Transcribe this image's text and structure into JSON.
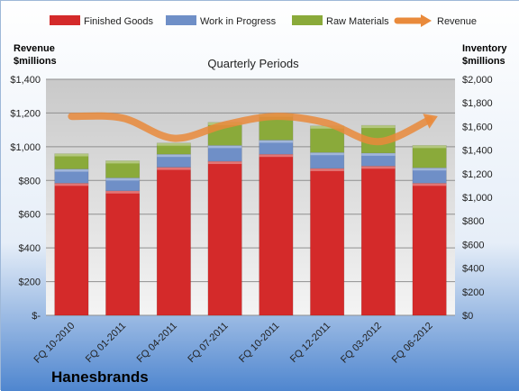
{
  "chart_data": {
    "type": "bar",
    "subtitle": "Quarterly Periods",
    "company": "Hanesbrands",
    "left_axis": {
      "title": [
        "Revenue",
        "$millions"
      ],
      "min": 0,
      "max": 1400,
      "step": 200,
      "tick_labels": [
        "$-",
        "$200",
        "$400",
        "$600",
        "$800",
        "$1,000",
        "$1,200",
        "$1,400"
      ]
    },
    "right_axis": {
      "title": [
        "Inventory",
        "$millions"
      ],
      "min": 0,
      "max": 2000,
      "step": 200,
      "tick_labels": [
        "$0",
        "$200",
        "$400",
        "$600",
        "$800",
        "$1,000",
        "$1,200",
        "$1,400",
        "$1,600",
        "$1,800",
        "$2,000"
      ]
    },
    "categories": [
      "FQ 10-2010",
      "FQ 01-2011",
      "FQ 04-2011",
      "FQ 07-2011",
      "FQ 10-2011",
      "FQ 12-2011",
      "FQ 03-2012",
      "FQ 06-2012"
    ],
    "series": [
      {
        "name": "Finished Goods",
        "axis": "right",
        "color": "#d42a2a",
        "values": [
          1120,
          1055,
          1255,
          1305,
          1365,
          1245,
          1265,
          1120
        ]
      },
      {
        "name": "Work in Progress",
        "axis": "right",
        "color": "#6f8fc7",
        "values": [
          120,
          110,
          110,
          135,
          120,
          135,
          110,
          130
        ]
      },
      {
        "name": "Raw Materials",
        "axis": "right",
        "color": "#8aaa3a",
        "values": [
          130,
          145,
          95,
          195,
          220,
          225,
          235,
          190
        ]
      }
    ],
    "line": {
      "name": "Revenue",
      "axis": "left",
      "color": "#e98a3b",
      "values": [
        1180,
        1170,
        1050,
        1130,
        1180,
        1140,
        1030,
        1160
      ]
    },
    "legend": "top",
    "grid": true
  }
}
